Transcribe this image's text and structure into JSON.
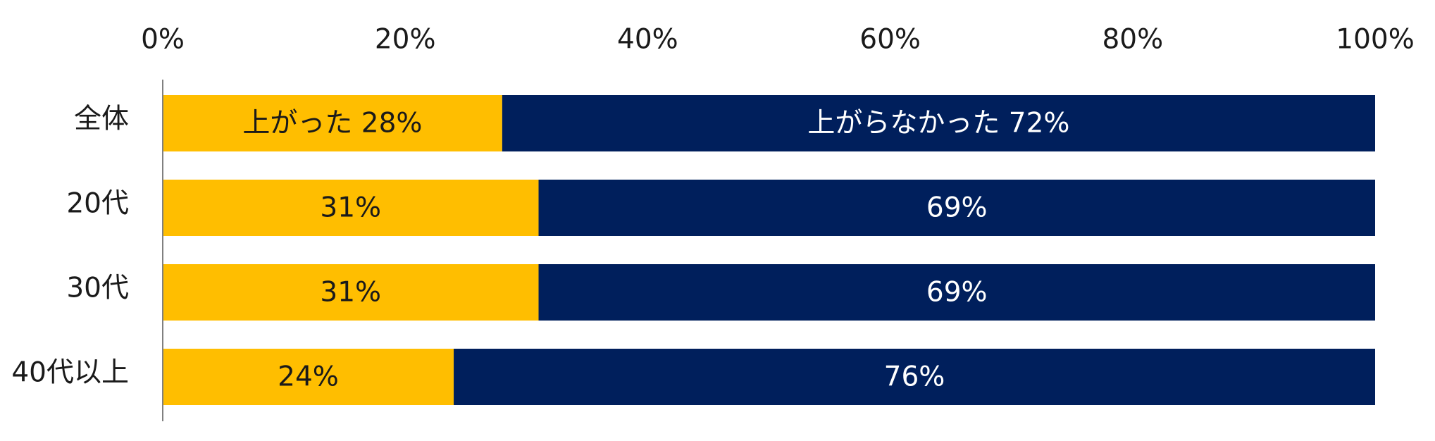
{
  "chart_data": {
    "type": "bar",
    "orientation": "horizontal",
    "stacked": true,
    "percent": true,
    "title": "",
    "xlabel": "",
    "ylabel": "",
    "xlim": [
      0,
      100
    ],
    "x_ticks": [
      "0%",
      "20%",
      "40%",
      "60%",
      "80%",
      "100%"
    ],
    "x_axis_position": "top",
    "grid": false,
    "legend": "none",
    "categories": [
      "全体",
      "20代",
      "30代",
      "40代以上"
    ],
    "series": [
      {
        "values": [
          28,
          31,
          31,
          24
        ],
        "color": "#FFBE00",
        "label_color": "#1a1a1a",
        "data_labels": [
          "上がった 28%",
          "31%",
          "31%",
          "24%"
        ]
      },
      {
        "values": [
          72,
          69,
          69,
          76
        ],
        "color": "#001F5C",
        "label_color": "#ffffff",
        "data_labels": [
          "上がらなかった 72%",
          "69%",
          "69%",
          "76%"
        ]
      }
    ],
    "axis_color": "#808080"
  }
}
